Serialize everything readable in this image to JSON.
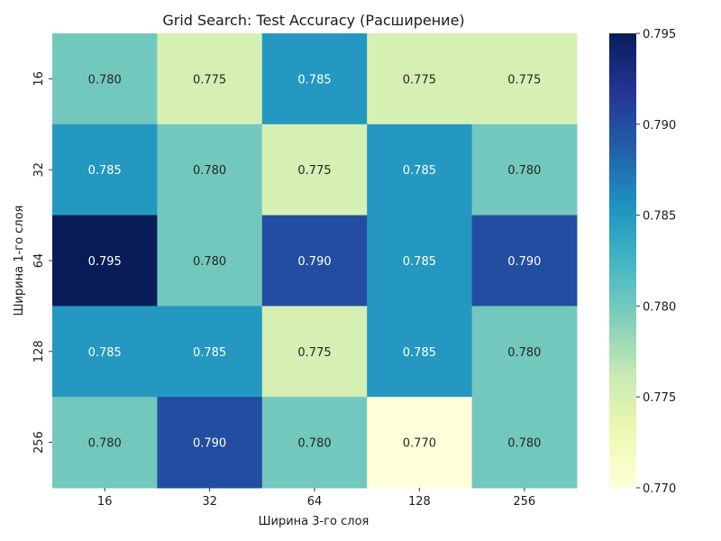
{
  "chart_data": {
    "type": "heatmap",
    "title": "Grid Search: Test Accuracy (Расширение)",
    "xlabel": "Ширина 3-го слоя",
    "ylabel": "Ширина 1-го слоя",
    "x_categories": [
      "16",
      "32",
      "64",
      "128",
      "256"
    ],
    "y_categories": [
      "16",
      "32",
      "64",
      "128",
      "256"
    ],
    "values": [
      [
        0.78,
        0.775,
        0.785,
        0.775,
        0.775
      ],
      [
        0.785,
        0.78,
        0.775,
        0.785,
        0.78
      ],
      [
        0.795,
        0.78,
        0.79,
        0.785,
        0.79
      ],
      [
        0.785,
        0.785,
        0.775,
        0.785,
        0.78
      ],
      [
        0.78,
        0.79,
        0.78,
        0.77,
        0.78
      ]
    ],
    "value_labels": [
      [
        "0.780",
        "0.775",
        "0.785",
        "0.775",
        "0.775"
      ],
      [
        "0.785",
        "0.780",
        "0.775",
        "0.785",
        "0.780"
      ],
      [
        "0.795",
        "0.780",
        "0.790",
        "0.785",
        "0.790"
      ],
      [
        "0.785",
        "0.785",
        "0.775",
        "0.785",
        "0.780"
      ],
      [
        "0.780",
        "0.790",
        "0.780",
        "0.770",
        "0.780"
      ]
    ],
    "colorbar": {
      "range": [
        0.77,
        0.795
      ],
      "ticks": [
        0.77,
        0.775,
        0.78,
        0.785,
        0.79,
        0.795
      ],
      "tick_labels": [
        "0.770",
        "0.775",
        "0.780",
        "0.785",
        "0.790",
        "0.795"
      ],
      "colormap": "YlGnBu",
      "stops": [
        "#ffffd9",
        "#edf8b1",
        "#c7e9b4",
        "#7fcdbb",
        "#41b6c4",
        "#1d91c0",
        "#225ea8",
        "#253494",
        "#081d58"
      ]
    },
    "grid": false
  }
}
